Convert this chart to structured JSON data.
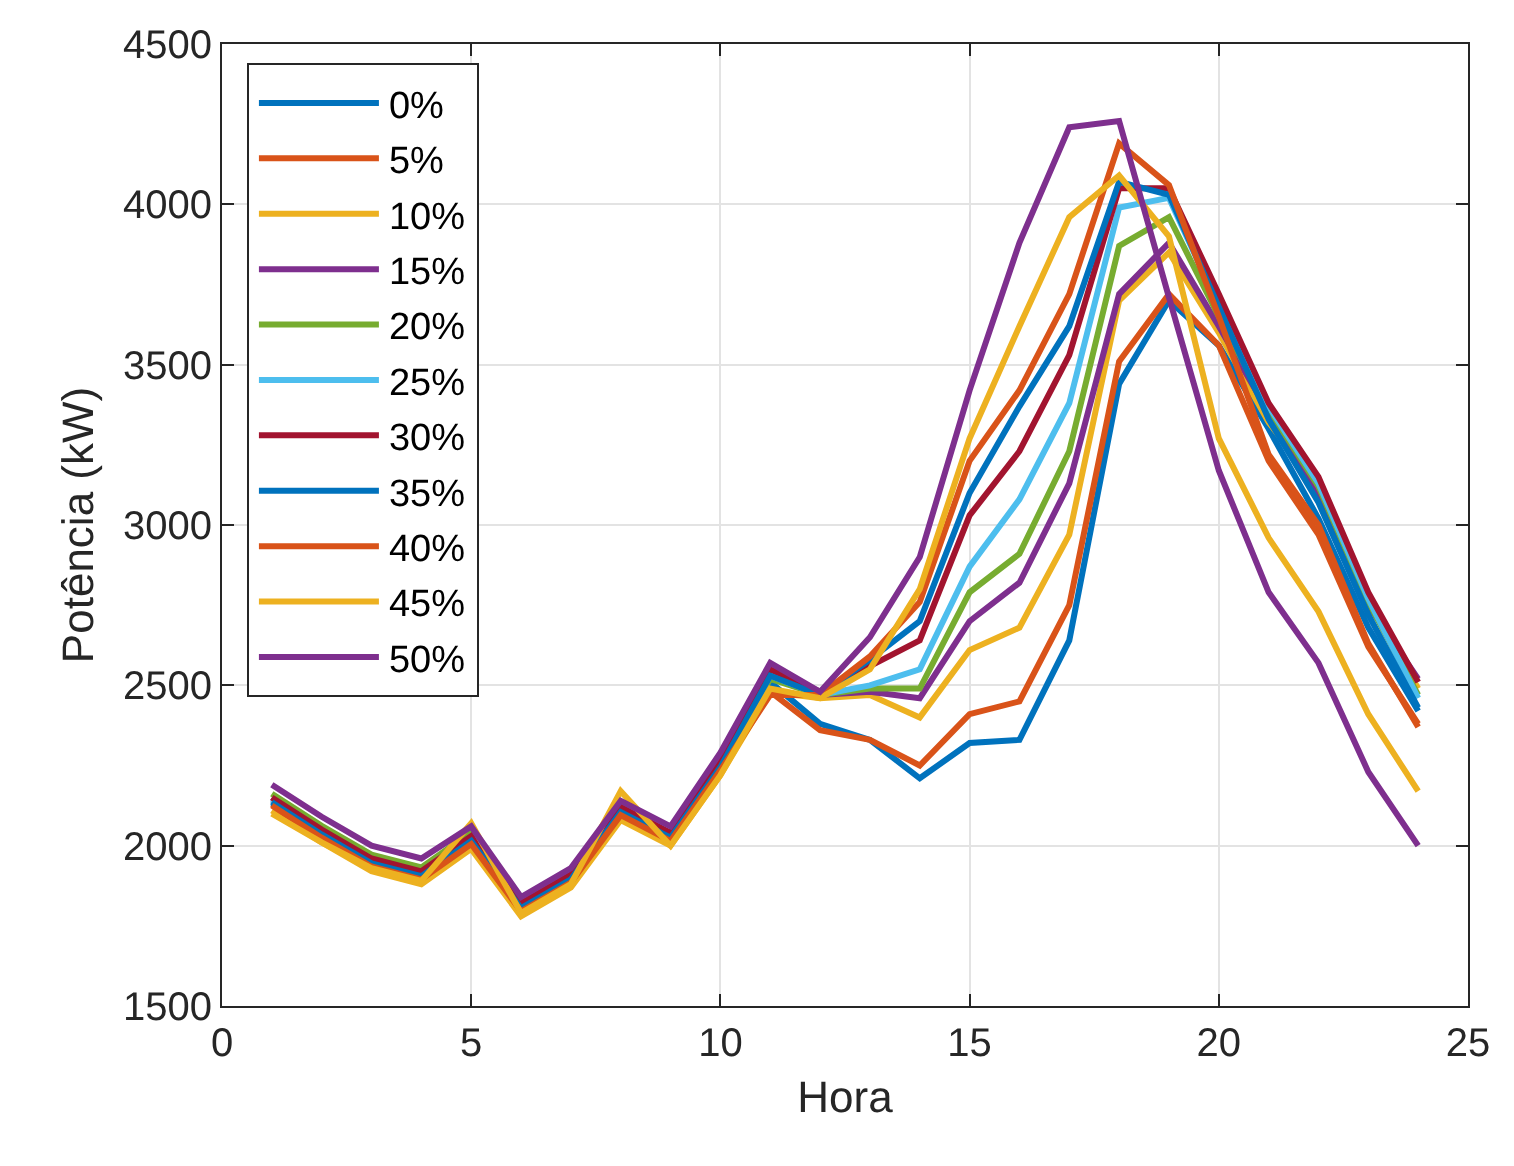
{
  "chart_data": {
    "type": "line",
    "xlabel": "Hora",
    "ylabel": "Potência (kW)",
    "x": [
      1,
      2,
      3,
      4,
      5,
      6,
      7,
      8,
      9,
      10,
      11,
      12,
      13,
      14,
      15,
      16,
      17,
      18,
      19,
      20,
      21,
      22,
      23,
      24
    ],
    "xlim": [
      0,
      25
    ],
    "xticks": [
      0,
      5,
      10,
      15,
      20,
      25
    ],
    "ylim": [
      1500,
      4500
    ],
    "yticks": [
      1500,
      2000,
      2500,
      3000,
      3500,
      4000,
      4500
    ],
    "grid": true,
    "legend": "top left",
    "line_style": "solid",
    "marker": "none",
    "series": [
      {
        "name": "0%",
        "color": "#0072bd",
        "values": [
          2140,
          2040,
          1950,
          1910,
          2020,
          1810,
          1900,
          2110,
          2030,
          2250,
          2510,
          2380,
          2330,
          2210,
          2320,
          2330,
          2640,
          3440,
          3700,
          3560,
          3300,
          3020,
          2680,
          2420
        ]
      },
      {
        "name": "5%",
        "color": "#d95319",
        "values": [
          2130,
          2030,
          1940,
          1900,
          2010,
          1800,
          1890,
          2100,
          2020,
          2240,
          2480,
          2360,
          2330,
          2250,
          2410,
          2450,
          2750,
          3510,
          3720,
          3560,
          3200,
          2970,
          2620,
          2380
        ]
      },
      {
        "name": "10%",
        "color": "#edb120",
        "values": [
          2110,
          2010,
          1920,
          1880,
          1990,
          1780,
          1870,
          2080,
          2000,
          2220,
          2480,
          2460,
          2470,
          2400,
          2610,
          2680,
          2970,
          3700,
          3850,
          3600,
          3320,
          3120,
          2760,
          2490
        ]
      },
      {
        "name": "15%",
        "color": "#7e2f8e",
        "values": [
          2150,
          2050,
          1960,
          1920,
          2030,
          1820,
          1910,
          2120,
          2040,
          2260,
          2540,
          2470,
          2480,
          2460,
          2700,
          2820,
          3130,
          3720,
          3880,
          3620,
          3350,
          3100,
          2750,
          2520
        ]
      },
      {
        "name": "20%",
        "color": "#77ac30",
        "values": [
          2162,
          2062,
          1972,
          1932,
          2042,
          1810,
          1900,
          2110,
          2030,
          2250,
          2520,
          2470,
          2490,
          2490,
          2790,
          2910,
          3230,
          3870,
          3960,
          3650,
          3360,
          3120,
          2760,
          2470
        ]
      },
      {
        "name": "25%",
        "color": "#4dbeee",
        "values": [
          2145,
          2045,
          1955,
          1915,
          2025,
          1815,
          1905,
          2115,
          2035,
          2255,
          2530,
          2470,
          2500,
          2550,
          2870,
          3080,
          3380,
          3990,
          4020,
          3680,
          3370,
          3130,
          2770,
          2460
        ]
      },
      {
        "name": "30%",
        "color": "#a2142f",
        "values": [
          2150,
          2050,
          1960,
          1920,
          2030,
          1820,
          1910,
          2120,
          2040,
          2260,
          2550,
          2480,
          2560,
          2640,
          3030,
          3230,
          3530,
          4050,
          4050,
          3720,
          3380,
          3150,
          2790,
          2510
        ]
      },
      {
        "name": "35%",
        "color": "#0072bd",
        "values": [
          2135,
          2035,
          1945,
          1905,
          2015,
          1805,
          1895,
          2105,
          2025,
          2245,
          2530,
          2470,
          2580,
          2700,
          3100,
          3370,
          3620,
          4070,
          4030,
          3680,
          3330,
          3070,
          2720,
          2430
        ]
      },
      {
        "name": "40%",
        "color": "#d95319",
        "values": [
          2125,
          2025,
          1935,
          1895,
          2005,
          1795,
          1885,
          2095,
          2015,
          2235,
          2470,
          2470,
          2590,
          2760,
          3200,
          3420,
          3720,
          4190,
          4060,
          3650,
          3220,
          3000,
          2630,
          2370
        ]
      },
      {
        "name": "45%",
        "color": "#edb120",
        "values": [
          2100,
          2010,
          1930,
          1890,
          2070,
          1790,
          1880,
          2170,
          2000,
          2220,
          2490,
          2460,
          2550,
          2800,
          3270,
          3620,
          3960,
          4090,
          3900,
          3270,
          2960,
          2730,
          2410,
          2170
        ]
      },
      {
        "name": "50%",
        "color": "#7e2f8e",
        "values": [
          2190,
          2090,
          2000,
          1960,
          2060,
          1840,
          1930,
          2140,
          2060,
          2290,
          2570,
          2480,
          2650,
          2900,
          3420,
          3880,
          4240,
          4260,
          3710,
          3170,
          2790,
          2570,
          2230,
          2000
        ]
      }
    ]
  }
}
